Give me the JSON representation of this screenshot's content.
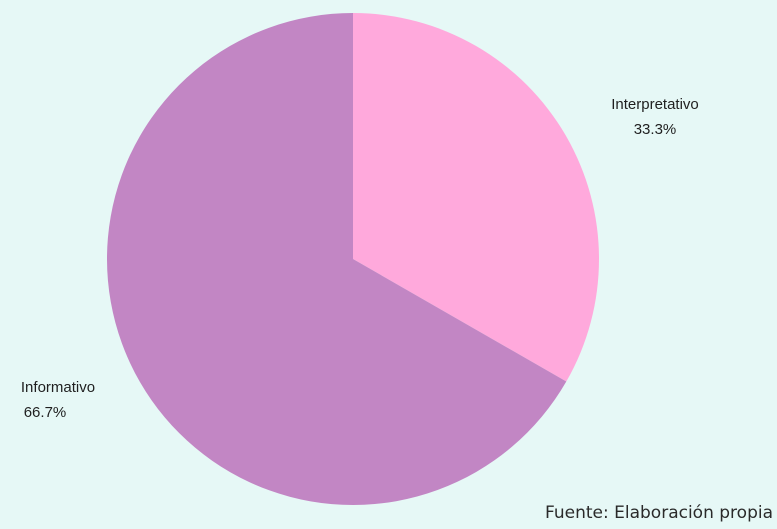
{
  "chart_data": {
    "type": "pie",
    "categories": [
      "Interpretativo",
      "Informativo"
    ],
    "values": [
      33.3,
      66.7
    ],
    "value_labels": [
      "33.3%",
      "66.7%"
    ],
    "colors": [
      "#ffa9dc",
      "#c286c4"
    ],
    "start_angle": "12 o'clock",
    "direction": "clockwise",
    "legend": "none"
  },
  "source": "Fuente: Elaboración propia"
}
